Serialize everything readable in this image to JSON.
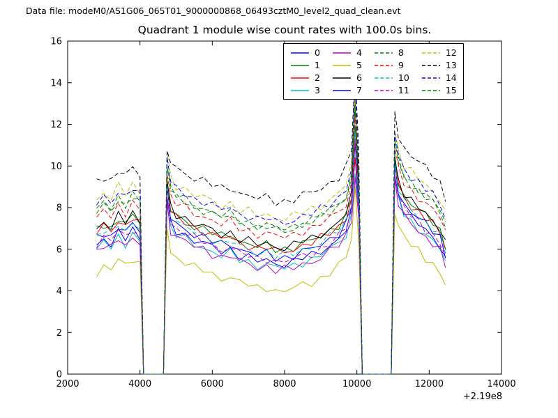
{
  "header": {
    "data_file_label": "Data file: modeM0/AS1G06_065T01_9000000868_06493cztM0_level2_quad_clean.evt"
  },
  "chart_data": {
    "type": "line",
    "title": "Quadrant 1 module wise count rates with 100.0s bins.",
    "xlabel": "",
    "ylabel": "",
    "x_offset_label": "+2.19e8",
    "xlim": [
      2000,
      14000
    ],
    "ylim": [
      0,
      16
    ],
    "x_ticks": [
      2000,
      4000,
      6000,
      8000,
      10000,
      12000,
      14000
    ],
    "y_ticks": [
      0,
      2,
      4,
      6,
      8,
      10,
      12,
      14,
      16
    ],
    "grid": false,
    "legend_position": "upper center",
    "x": [
      2800,
      3000,
      3200,
      3400,
      3600,
      3800,
      4000,
      4100,
      4650,
      4750,
      4850,
      5000,
      5250,
      5500,
      5750,
      6000,
      6250,
      6500,
      6750,
      7000,
      7250,
      7500,
      7750,
      8000,
      8250,
      8500,
      8750,
      9000,
      9250,
      9500,
      9700,
      9850,
      9950,
      10050,
      10150,
      10850,
      10950,
      11050,
      11150,
      11300,
      11500,
      11700,
      11900,
      12100,
      12300,
      12450
    ],
    "series": [
      {
        "name": "0",
        "color": "#0000ff",
        "dash": false,
        "values": [
          6.2,
          6.5,
          6.3,
          6.8,
          6.5,
          6.9,
          6.6,
          0,
          0,
          8.5,
          7.2,
          6.9,
          6.7,
          6.4,
          6.3,
          6.1,
          5.9,
          6.0,
          5.7,
          5.6,
          5.4,
          5.5,
          5.3,
          5.3,
          5.4,
          5.6,
          5.7,
          5.9,
          6.2,
          6.5,
          6.9,
          7.8,
          10.6,
          7.8,
          0,
          0,
          0,
          9.6,
          8.5,
          7.9,
          7.5,
          7.2,
          6.9,
          6.6,
          6.2,
          5.5
        ]
      },
      {
        "name": "1",
        "color": "#008000",
        "dash": false,
        "values": [
          6.9,
          7.2,
          7.0,
          7.5,
          7.2,
          7.6,
          7.3,
          0,
          0,
          9.2,
          7.9,
          7.6,
          7.4,
          7.1,
          7.0,
          6.8,
          6.6,
          6.7,
          6.4,
          6.3,
          6.1,
          6.2,
          6.0,
          6.0,
          6.1,
          6.3,
          6.4,
          6.6,
          6.9,
          7.2,
          7.6,
          8.5,
          11.8,
          8.5,
          0,
          0,
          0,
          10.3,
          9.2,
          8.6,
          8.2,
          7.9,
          7.6,
          7.3,
          6.9,
          6.2
        ]
      },
      {
        "name": "2",
        "color": "#ff0000",
        "dash": false,
        "values": [
          6.8,
          7.1,
          6.9,
          7.4,
          7.1,
          7.5,
          7.2,
          0,
          0,
          9.1,
          7.8,
          7.5,
          7.3,
          7.0,
          6.9,
          6.7,
          6.5,
          6.6,
          6.3,
          6.2,
          6.0,
          6.1,
          5.9,
          5.9,
          6.0,
          6.2,
          6.3,
          6.5,
          6.8,
          7.1,
          7.5,
          8.4,
          10.2,
          8.4,
          0,
          0,
          0,
          10.1,
          9.1,
          8.5,
          8.1,
          7.8,
          7.5,
          7.2,
          6.8,
          6.1
        ]
      },
      {
        "name": "3",
        "color": "#00bfbf",
        "dash": false,
        "values": [
          6.0,
          6.3,
          6.1,
          6.6,
          6.3,
          6.7,
          6.4,
          0,
          0,
          8.3,
          7.0,
          6.7,
          6.5,
          6.2,
          6.1,
          5.9,
          5.7,
          5.8,
          5.5,
          5.4,
          5.2,
          5.3,
          5.1,
          5.1,
          5.2,
          5.4,
          5.5,
          5.7,
          6.0,
          6.3,
          6.7,
          7.6,
          9.8,
          7.6,
          0,
          0,
          0,
          9.4,
          8.3,
          7.7,
          7.3,
          7.0,
          6.7,
          6.4,
          6.0,
          5.3
        ]
      },
      {
        "name": "4",
        "color": "#bf00bf",
        "dash": false,
        "values": [
          5.9,
          6.2,
          6.0,
          6.5,
          6.2,
          6.6,
          6.3,
          0,
          0,
          8.2,
          6.9,
          6.6,
          6.4,
          6.1,
          6.0,
          5.8,
          5.6,
          5.7,
          5.4,
          5.3,
          5.1,
          5.2,
          5.0,
          5.0,
          5.1,
          5.3,
          5.4,
          5.6,
          5.9,
          6.2,
          6.6,
          7.5,
          9.4,
          7.5,
          0,
          0,
          0,
          9.3,
          8.2,
          7.6,
          7.2,
          6.9,
          6.6,
          6.3,
          5.9,
          5.2
        ]
      },
      {
        "name": "5",
        "color": "#bfbf00",
        "dash": false,
        "values": [
          4.9,
          5.2,
          5.0,
          5.5,
          5.2,
          5.6,
          5.3,
          0,
          0,
          7.0,
          5.9,
          5.6,
          5.4,
          5.1,
          5.0,
          4.8,
          4.6,
          4.7,
          4.4,
          4.3,
          4.1,
          4.2,
          4.0,
          4.0,
          4.1,
          4.3,
          4.4,
          4.6,
          4.9,
          5.2,
          5.6,
          6.5,
          9.0,
          6.5,
          0,
          0,
          0,
          7.8,
          7.2,
          6.6,
          6.2,
          5.9,
          5.6,
          5.3,
          4.9,
          4.2
        ]
      },
      {
        "name": "6",
        "color": "#000000",
        "dash": false,
        "values": [
          7.0,
          7.3,
          7.1,
          7.6,
          7.3,
          7.7,
          7.4,
          0,
          0,
          9.3,
          8.0,
          7.7,
          7.5,
          7.2,
          7.1,
          6.9,
          6.7,
          6.8,
          6.5,
          6.4,
          6.2,
          6.3,
          6.1,
          6.1,
          6.2,
          6.4,
          6.5,
          6.7,
          7.0,
          7.3,
          7.7,
          8.6,
          13.3,
          8.6,
          0,
          0,
          0,
          10.4,
          9.3,
          8.7,
          8.3,
          8.0,
          7.7,
          7.4,
          7.0,
          6.3
        ]
      },
      {
        "name": "7",
        "color": "#0000ff",
        "dash": false,
        "values": [
          6.5,
          6.8,
          6.6,
          7.1,
          6.8,
          7.2,
          6.9,
          0,
          0,
          8.8,
          7.5,
          7.2,
          7.0,
          6.7,
          6.6,
          6.4,
          6.2,
          6.3,
          6.0,
          5.9,
          5.7,
          5.8,
          5.6,
          5.6,
          5.7,
          5.9,
          6.0,
          6.2,
          6.5,
          6.8,
          7.2,
          8.1,
          11.0,
          8.1,
          0,
          0,
          0,
          9.9,
          8.8,
          8.2,
          7.8,
          7.5,
          7.2,
          6.9,
          6.6,
          5.8
        ]
      },
      {
        "name": "8",
        "color": "#008000",
        "dash": true,
        "values": [
          7.8,
          8.1,
          7.9,
          8.4,
          8.1,
          8.5,
          8.2,
          0,
          0,
          10.1,
          8.8,
          8.5,
          8.3,
          8.0,
          7.9,
          7.7,
          7.5,
          7.6,
          7.3,
          7.2,
          7.0,
          7.1,
          6.9,
          6.9,
          7.0,
          7.2,
          7.3,
          7.5,
          7.8,
          8.1,
          8.5,
          9.4,
          13.0,
          9.4,
          0,
          0,
          0,
          11.2,
          10.1,
          9.5,
          9.1,
          8.8,
          8.5,
          8.2,
          7.8,
          7.1
        ]
      },
      {
        "name": "9",
        "color": "#ff0000",
        "dash": true,
        "values": [
          7.5,
          7.8,
          7.6,
          8.1,
          7.8,
          8.2,
          7.9,
          0,
          0,
          9.8,
          8.5,
          8.2,
          8.0,
          7.7,
          7.6,
          7.4,
          7.2,
          7.3,
          7.0,
          6.9,
          6.7,
          6.8,
          6.6,
          6.6,
          6.7,
          6.9,
          7.0,
          7.2,
          7.5,
          7.8,
          8.2,
          9.1,
          12.6,
          9.1,
          0,
          0,
          0,
          10.9,
          9.8,
          9.2,
          8.8,
          8.5,
          8.2,
          7.9,
          7.5,
          6.8
        ]
      },
      {
        "name": "10",
        "color": "#00bfbf",
        "dash": true,
        "values": [
          6.6,
          6.9,
          6.7,
          7.2,
          6.9,
          7.3,
          7.0,
          0,
          0,
          8.9,
          7.6,
          7.3,
          7.1,
          6.8,
          6.7,
          6.5,
          6.3,
          6.4,
          6.1,
          6.0,
          5.8,
          5.9,
          5.7,
          5.7,
          5.8,
          6.0,
          6.1,
          6.3,
          6.6,
          6.9,
          7.3,
          8.2,
          11.6,
          8.2,
          0,
          0,
          0,
          10.0,
          8.9,
          8.3,
          7.9,
          7.6,
          7.3,
          7.0,
          6.6,
          5.9
        ]
      },
      {
        "name": "11",
        "color": "#bf00bf",
        "dash": true,
        "values": [
          6.3,
          6.6,
          6.4,
          6.9,
          6.6,
          7.0,
          6.7,
          0,
          0,
          8.6,
          7.3,
          7.0,
          6.8,
          6.5,
          6.4,
          6.2,
          6.0,
          6.1,
          5.8,
          5.7,
          5.5,
          5.6,
          5.4,
          5.4,
          5.5,
          5.7,
          5.8,
          6.0,
          6.3,
          6.6,
          7.0,
          7.9,
          11.3,
          7.9,
          0,
          0,
          0,
          9.7,
          8.6,
          8.0,
          7.6,
          7.3,
          7.0,
          6.7,
          6.3,
          5.6
        ]
      },
      {
        "name": "12",
        "color": "#bfbf00",
        "dash": true,
        "values": [
          8.4,
          8.7,
          8.5,
          9.0,
          8.7,
          9.1,
          8.8,
          0,
          0,
          10.7,
          9.4,
          9.1,
          8.9,
          8.6,
          8.5,
          8.3,
          8.1,
          8.2,
          7.9,
          7.8,
          7.6,
          7.7,
          7.5,
          7.5,
          7.6,
          7.8,
          7.9,
          8.1,
          8.4,
          8.7,
          9.1,
          10.0,
          13.6,
          10.0,
          0,
          0,
          0,
          11.8,
          10.7,
          10.1,
          9.7,
          9.4,
          9.1,
          8.8,
          8.4,
          7.7
        ]
      },
      {
        "name": "13",
        "color": "#000000",
        "dash": true,
        "values": [
          9.2,
          9.5,
          9.3,
          9.8,
          9.5,
          9.9,
          9.6,
          0,
          0,
          10.5,
          10.2,
          9.9,
          9.7,
          9.4,
          9.3,
          9.1,
          8.9,
          9.0,
          8.7,
          8.6,
          8.4,
          8.5,
          8.3,
          8.3,
          8.4,
          8.6,
          8.7,
          8.9,
          9.2,
          9.5,
          9.9,
          10.8,
          14.5,
          10.8,
          0,
          0,
          0,
          12.4,
          11.5,
          10.9,
          10.5,
          10.2,
          9.9,
          9.6,
          9.2,
          8.5
        ]
      },
      {
        "name": "14",
        "color": "#0000ff",
        "dash": true,
        "values": [
          8.2,
          8.5,
          8.3,
          8.8,
          8.5,
          8.9,
          8.6,
          0,
          0,
          10.5,
          9.2,
          8.9,
          8.7,
          8.4,
          8.3,
          8.1,
          7.9,
          8.0,
          7.7,
          7.6,
          7.4,
          7.5,
          7.3,
          7.3,
          7.4,
          7.6,
          7.7,
          7.9,
          8.2,
          8.5,
          8.9,
          9.8,
          13.9,
          9.8,
          0,
          0,
          0,
          11.6,
          10.5,
          9.9,
          9.5,
          9.2,
          8.9,
          8.6,
          8.2,
          7.5
        ]
      },
      {
        "name": "15",
        "color": "#008000",
        "dash": true,
        "values": [
          7.9,
          8.2,
          8.0,
          8.5,
          8.2,
          8.6,
          8.3,
          0,
          0,
          10.2,
          8.9,
          8.6,
          8.4,
          8.1,
          8.0,
          7.8,
          7.6,
          7.7,
          7.4,
          7.3,
          7.1,
          7.2,
          7.0,
          7.0,
          7.1,
          7.3,
          7.4,
          7.6,
          7.9,
          8.2,
          8.6,
          9.5,
          12.9,
          9.5,
          0,
          0,
          0,
          11.3,
          10.2,
          9.6,
          9.2,
          8.9,
          8.6,
          8.3,
          7.9,
          7.2
        ]
      }
    ]
  }
}
